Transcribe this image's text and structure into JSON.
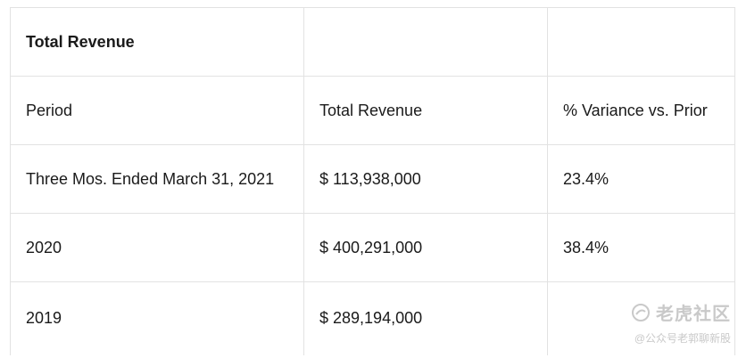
{
  "table": {
    "title": "Total Revenue",
    "headers": [
      "Period",
      "Total Revenue",
      "% Variance vs. Prior"
    ],
    "rows": [
      {
        "period": "Three Mos. Ended March 31, 2021",
        "revenue": "$ 113,938,000",
        "variance": "23.4%"
      },
      {
        "period": "2020",
        "revenue": "$ 400,291,000",
        "variance": "38.4%"
      },
      {
        "period": "2019",
        "revenue": "$ 289,194,000",
        "variance": ""
      }
    ]
  },
  "watermark": {
    "brand": "老虎社区",
    "handle": "@公众号老郭聊新股",
    "icon": "chat-bubble-icon"
  }
}
